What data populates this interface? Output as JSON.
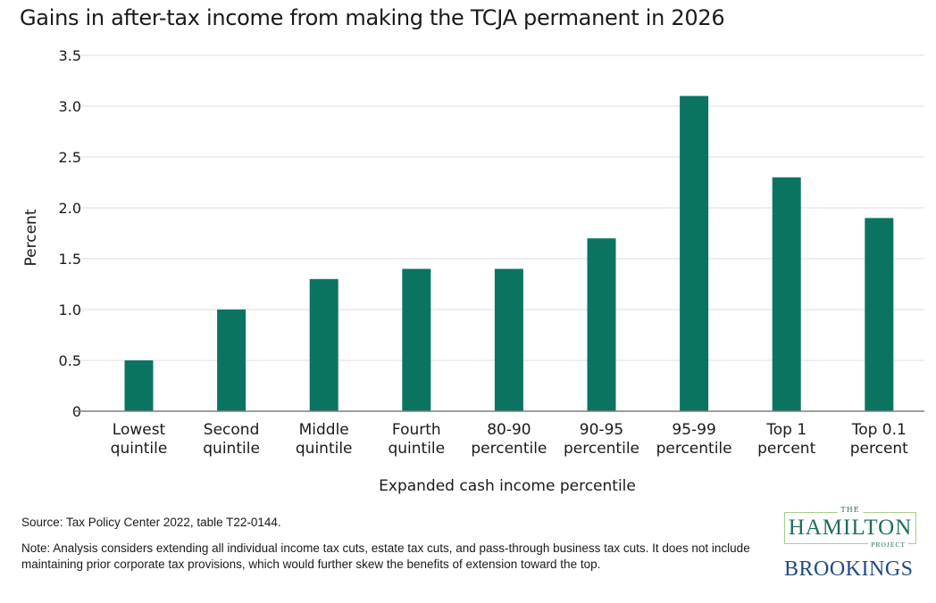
{
  "title": "Gains in after-tax income from making the TCJA permanent in 2026",
  "chart_data": {
    "type": "bar",
    "title": "Gains in after-tax income from making the TCJA permanent in 2026",
    "categories": [
      [
        "Lowest",
        "quintile"
      ],
      [
        "Second",
        "quintile"
      ],
      [
        "Middle",
        "quintile"
      ],
      [
        "Fourth",
        "quintile"
      ],
      [
        "80-90",
        "percentile"
      ],
      [
        "90-95",
        "percentile"
      ],
      [
        "95-99",
        "percentile"
      ],
      [
        "Top 1",
        "percent"
      ],
      [
        "Top 0.1",
        "percent"
      ]
    ],
    "values": [
      0.5,
      1.0,
      1.3,
      1.4,
      1.4,
      1.7,
      3.1,
      2.3,
      1.9
    ],
    "xlabel": "Expanded cash income percentile",
    "ylabel": "Percent",
    "ylim": [
      0,
      3.5
    ],
    "yticks": [
      0,
      0.5,
      1.0,
      1.5,
      2.0,
      2.5,
      3.0,
      3.5
    ],
    "ytick_labels": [
      "0",
      "0.5",
      "1.0",
      "1.5",
      "2.0",
      "2.5",
      "3.0",
      "3.5"
    ],
    "grid": true,
    "bar_color": "#0b7461",
    "grid_color": "#e3e3e3",
    "baseline_color": "#7f7f7f"
  },
  "footer": {
    "source": "Source: Tax Policy Center 2022, table T22-0144.",
    "note": "Note: Analysis considers extending all individual income tax cuts, estate tax cuts, and pass-through business tax cuts. It does not include maintaining prior corporate tax provisions, which would further skew the benefits of extension toward the top."
  },
  "logos": {
    "hamilton_the": "THE",
    "hamilton_name": "HAMILTON",
    "hamilton_project": "PROJECT",
    "brookings": "BROOKINGS"
  }
}
